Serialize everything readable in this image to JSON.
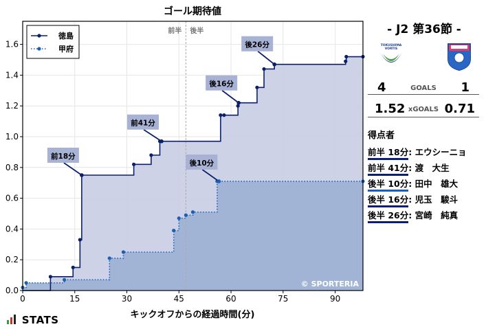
{
  "chart_data": {
    "type": "line",
    "title": "ゴール期待値",
    "xlabel": "キックオフからの経過時間(分)",
    "ylabel": "",
    "xlim": [
      0,
      98
    ],
    "ylim": [
      0,
      1.75
    ],
    "xticks": [
      0,
      15,
      30,
      45,
      60,
      75,
      90
    ],
    "yticks": [
      0.0,
      0.2,
      0.4,
      0.6,
      0.8,
      1.0,
      1.2,
      1.4,
      1.6
    ],
    "half_time_line": 47,
    "half_labels": [
      "前半",
      "後半"
    ],
    "grid": true,
    "legend_position": "top-left",
    "watermark": "© SPORTERIA",
    "series": [
      {
        "name": "徳島",
        "style": "solid",
        "color": "#0b1f6b",
        "fill": "#c9cde4",
        "x": [
          0,
          8,
          14.5,
          16.5,
          17,
          32,
          37,
          39.5,
          40,
          57,
          58,
          62,
          62.2,
          67.5,
          69.5,
          72.5,
          93,
          93.2,
          98
        ],
        "y": [
          0.0,
          0.09,
          0.15,
          0.33,
          0.75,
          0.82,
          0.88,
          0.97,
          0.97,
          1.14,
          1.14,
          1.2,
          1.22,
          1.32,
          1.44,
          1.47,
          1.49,
          1.52,
          1.52
        ]
      },
      {
        "name": "甲府",
        "style": "dotted",
        "color": "#1a5fb4",
        "fill": "#9cb0d4",
        "x": [
          0,
          1,
          12,
          25,
          29,
          43.5,
          45,
          47,
          49,
          56,
          56.5,
          98
        ],
        "y": [
          0.02,
          0.05,
          0.07,
          0.21,
          0.25,
          0.39,
          0.47,
          0.49,
          0.51,
          0.71,
          0.71,
          0.71
        ]
      }
    ],
    "annotations": [
      {
        "label": "前18分",
        "x": 17,
        "y": 0.75,
        "team": "徳島"
      },
      {
        "label": "前41分",
        "x": 40,
        "y": 0.97,
        "team": "徳島"
      },
      {
        "label": "後10分",
        "x": 56.5,
        "y": 0.71,
        "team": "甲府"
      },
      {
        "label": "後16分",
        "x": 62.2,
        "y": 1.22,
        "team": "徳島"
      },
      {
        "label": "後26分",
        "x": 72.5,
        "y": 1.47,
        "team": "徳島"
      }
    ]
  },
  "match": {
    "title": "-  J2 第36節  -",
    "home_logo_text": "TOKUSHIMA VORTIS",
    "home_score": "4",
    "away_score": "1",
    "goals_label": "GOALS",
    "home_xg": "1.52",
    "away_xg": "0.71",
    "xg_label": "xGOALS"
  },
  "scorers": {
    "heading": "得点者",
    "items": [
      {
        "time": "前半 18分",
        "name": "エウシーニョ",
        "color": "#0b1f6b"
      },
      {
        "time": "前半 41分",
        "name": "渡　大生",
        "color": "#0b1f6b"
      },
      {
        "time": "後半 10分",
        "name": "田中　雄大",
        "color": "#1a5fb4"
      },
      {
        "time": "後半 16分",
        "name": "児玉　駿斗",
        "color": "#0b1f6b"
      },
      {
        "time": "後半 26分",
        "name": "宮崎　純真",
        "color": "#0b1f6b"
      }
    ]
  },
  "branding": {
    "stats_logo": "STATS"
  }
}
